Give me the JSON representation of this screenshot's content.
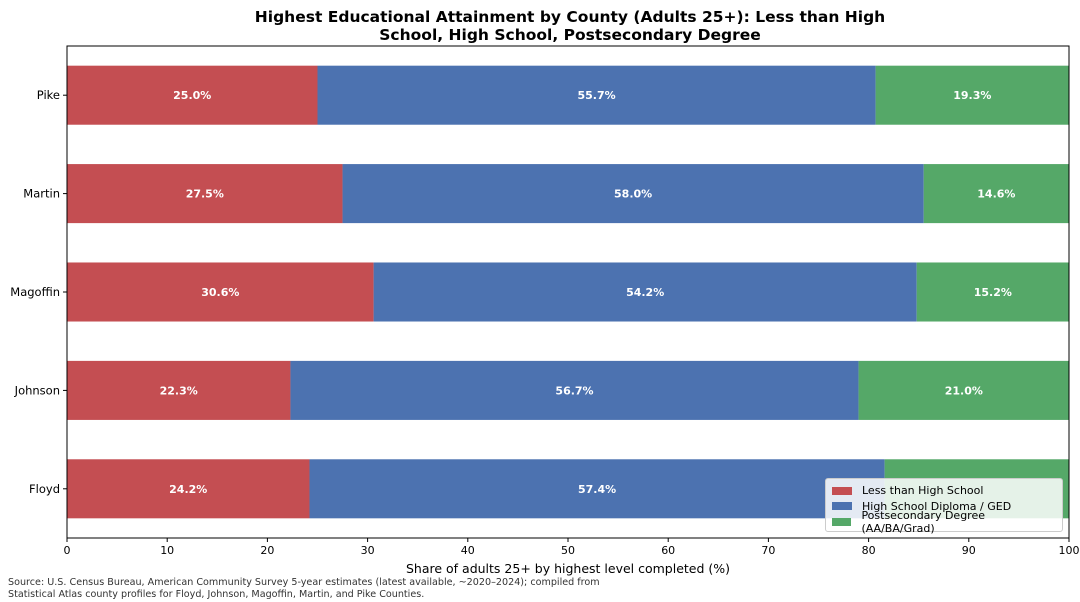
{
  "chart_data": {
    "type": "bar",
    "orientation": "horizontal",
    "stacked": true,
    "title_line1": "Highest Educational Attainment by County (Adults 25+): Less than High",
    "title_line2": "School, High School, Postsecondary Degree",
    "xlabel": "Share of adults 25+ by highest level completed (%)",
    "ylabel": "",
    "xlim": [
      0,
      100
    ],
    "xticks": [
      "0",
      "10",
      "20",
      "30",
      "40",
      "50",
      "60",
      "70",
      "80",
      "90",
      "100"
    ],
    "categories": [
      "Pike",
      "Martin",
      "Magoffin",
      "Johnson",
      "Floyd"
    ],
    "series": [
      {
        "name": "Less than High School",
        "color": "#c44e52",
        "values": [
          25.0,
          27.5,
          30.6,
          22.3,
          24.2
        ],
        "labels": [
          "25.0%",
          "27.5%",
          "30.6%",
          "22.3%",
          "24.2%"
        ]
      },
      {
        "name": "High School Diploma / GED",
        "color": "#4c72b0",
        "values": [
          55.7,
          58.0,
          54.2,
          56.7,
          57.4
        ],
        "labels": [
          "55.7%",
          "58.0%",
          "54.2%",
          "56.7%",
          "57.4%"
        ]
      },
      {
        "name": "Postsecondary Degree (AA/BA/Grad)",
        "color": "#55a868",
        "values": [
          19.3,
          14.6,
          15.2,
          21.0,
          18.4
        ],
        "labels": [
          "19.3%",
          "14.6%",
          "15.2%",
          "21.0%",
          ""
        ]
      }
    ],
    "legend_position": "lower-right",
    "grid": false
  },
  "source_line1": "Source: U.S. Census Bureau, American Community Survey 5-year estimates (latest available, ~2020–2024); compiled from",
  "source_line2": "Statistical Atlas county profiles for Floyd, Johnson, Magoffin, Martin, and Pike Counties."
}
